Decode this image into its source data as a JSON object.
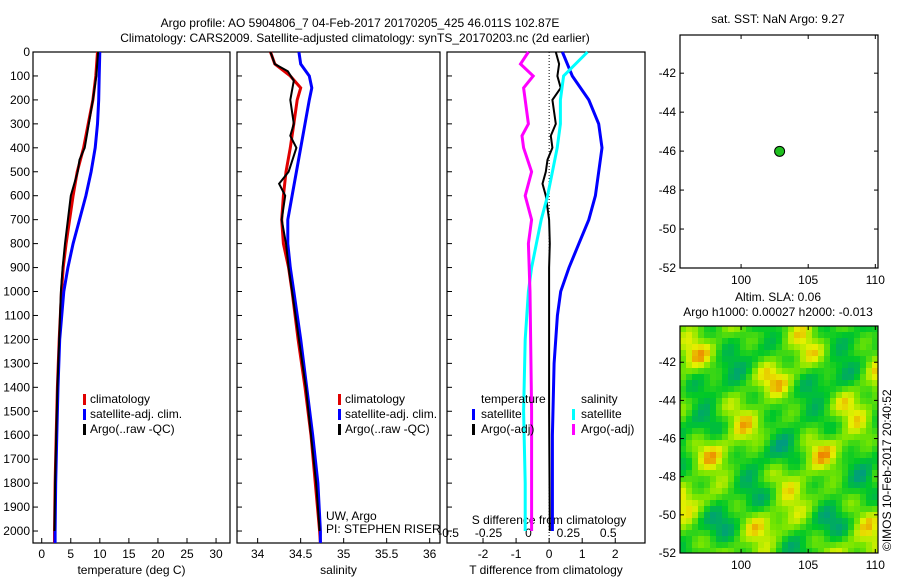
{
  "title_line1": "Argo profile: AO 5904806_7 04-Feb-2017 20170205_425 46.011S 102.87E",
  "title_line2": "Climatology: CARS2009. Satellite-adjusted climatology: synTS_20170203.nc (2d earlier)",
  "copyright": "©IMOS 10-Feb-2017 20:40:52",
  "colors": {
    "climatology": "#e00000",
    "satellite": "#0000ff",
    "argo": "#000000",
    "sal_sat": "#00ffff",
    "sal_argo": "#ff00ff",
    "float": "#1fbf1f"
  },
  "chart_data": [
    {
      "type": "line",
      "id": "temperature",
      "xlabel": "temperature (deg C)",
      "xlim": [
        -1.5,
        32.4
      ],
      "xticks": [
        "0",
        "5",
        "10",
        "15",
        "20",
        "25",
        "30"
      ],
      "xtick_values": [
        0,
        5,
        10,
        15,
        20,
        25,
        30
      ],
      "ylabel": "depth",
      "ylim": [
        0,
        2050
      ],
      "yticks": [
        "0",
        "100",
        "200",
        "300",
        "400",
        "500",
        "600",
        "700",
        "800",
        "900",
        "1000",
        "1100",
        "1200",
        "1300",
        "1400",
        "1500",
        "1600",
        "1700",
        "1800",
        "1900",
        "2000"
      ],
      "legend": [
        "climatology",
        "satellite-adj. clim.",
        "Argo(..raw -QC)"
      ],
      "series": [
        {
          "name": "climatology",
          "color": "climatology",
          "depth": [
            0,
            100,
            200,
            300,
            400,
            500,
            600,
            700,
            800,
            900,
            1000,
            1200,
            1400,
            1600,
            1800,
            2000,
            2050
          ],
          "values": [
            9.6,
            9.3,
            8.8,
            8.0,
            7.2,
            6.1,
            5.4,
            4.8,
            4.2,
            3.7,
            3.4,
            3.0,
            2.7,
            2.5,
            2.3,
            2.2,
            2.2
          ]
        },
        {
          "name": "satellite-adj. clim.",
          "color": "satellite",
          "depth": [
            0,
            100,
            200,
            300,
            400,
            500,
            600,
            700,
            800,
            900,
            1000,
            1200,
            1400,
            1600,
            1800,
            2000,
            2050
          ],
          "values": [
            10.0,
            9.9,
            9.8,
            9.6,
            9.2,
            8.5,
            7.6,
            6.5,
            5.4,
            4.5,
            3.8,
            3.1,
            2.8,
            2.6,
            2.4,
            2.3,
            2.3
          ]
        },
        {
          "name": "Argo(..raw -QC)",
          "color": "argo",
          "depth": [
            0,
            100,
            200,
            300,
            400,
            450,
            500,
            600,
            700,
            800,
            900,
            1000,
            1200,
            1400,
            1600,
            1800,
            2000
          ],
          "values": [
            9.7,
            9.4,
            8.8,
            8.1,
            7.4,
            6.5,
            6.2,
            5.0,
            4.5,
            4.0,
            3.6,
            3.3,
            3.0,
            2.7,
            2.5,
            2.3,
            2.2
          ]
        }
      ]
    },
    {
      "type": "line",
      "id": "salinity",
      "xlabel": "salinity",
      "xlim": [
        33.76,
        36.12
      ],
      "xticks": [
        "34",
        "34.5",
        "35",
        "35.5",
        "36"
      ],
      "xtick_values": [
        34,
        34.5,
        35,
        35.5,
        36
      ],
      "ylim": [
        0,
        2050
      ],
      "legend": [
        "climatology",
        "satellite-adj. clim.",
        "Argo(..raw -QC)"
      ],
      "annotations": [
        "UW, Argo",
        "PI: STEPHEN RISER"
      ],
      "series": [
        {
          "name": "climatology",
          "color": "climatology",
          "depth": [
            0,
            50,
            100,
            150,
            200,
            300,
            400,
            500,
            600,
            700,
            800,
            900,
            1000,
            1200,
            1400,
            1600,
            1800,
            2000,
            2050
          ],
          "values": [
            34.15,
            34.2,
            34.38,
            34.5,
            34.46,
            34.42,
            34.38,
            34.33,
            34.3,
            34.28,
            34.3,
            34.36,
            34.4,
            34.47,
            34.55,
            34.62,
            34.67,
            34.72,
            34.73
          ]
        },
        {
          "name": "satellite-adj. clim.",
          "color": "satellite",
          "depth": [
            0,
            50,
            100,
            150,
            200,
            300,
            400,
            500,
            600,
            700,
            800,
            900,
            1000,
            1200,
            1400,
            1600,
            1800,
            2000,
            2050
          ],
          "values": [
            34.48,
            34.5,
            34.6,
            34.63,
            34.6,
            34.55,
            34.5,
            34.45,
            34.4,
            34.35,
            34.35,
            34.38,
            34.42,
            34.5,
            34.57,
            34.64,
            34.7,
            34.73,
            34.73
          ]
        },
        {
          "name": "Argo(..raw -QC)",
          "color": "argo",
          "depth": [
            0,
            50,
            80,
            120,
            200,
            300,
            350,
            400,
            500,
            550,
            600,
            700,
            800,
            900,
            1000,
            1200,
            1400,
            1600,
            1800,
            2000
          ],
          "values": [
            34.15,
            34.2,
            34.35,
            34.42,
            34.38,
            34.42,
            34.38,
            34.45,
            34.36,
            34.25,
            34.32,
            34.28,
            34.33,
            34.36,
            34.4,
            34.48,
            34.56,
            34.62,
            34.68,
            34.72
          ]
        }
      ]
    },
    {
      "type": "line",
      "id": "differences",
      "xlabel": "T difference from climatology",
      "xlim": [
        -3.09,
        2.9
      ],
      "xticks": [
        "-2",
        "-1",
        "0",
        "1",
        "2"
      ],
      "xtick_values": [
        -2,
        -1,
        0,
        1,
        2
      ],
      "x2label": "S difference from climatology",
      "x2lim": [
        -0.51,
        0.73
      ],
      "x2ticks": [
        "-0.5",
        "-0.25",
        "0",
        "0.25",
        "0.5"
      ],
      "x2tick_values": [
        -0.5,
        -0.25,
        0,
        0.25,
        0.5
      ],
      "ylim": [
        0,
        2050
      ],
      "legend_groups": [
        {
          "title": "temperature",
          "items": [
            "satellite",
            "Argo(-adj)"
          ]
        },
        {
          "title": "salinity",
          "items": [
            "satellite",
            "Argo(-adj)"
          ]
        }
      ],
      "series": [
        {
          "name": "temperature satellite",
          "axis": "T",
          "color": "satellite",
          "depth": [
            0,
            100,
            200,
            300,
            400,
            500,
            600,
            700,
            800,
            900,
            1000,
            1100,
            1300,
            1600,
            2000
          ],
          "values": [
            0.4,
            0.7,
            1.2,
            1.5,
            1.6,
            1.5,
            1.4,
            1.2,
            0.9,
            0.6,
            0.35,
            0.25,
            0.15,
            0.1,
            0.1
          ]
        },
        {
          "name": "temperature Argo(-adj)",
          "axis": "T",
          "color": "argo",
          "depth": [
            0,
            50,
            100,
            150,
            200,
            250,
            300,
            350,
            400,
            450,
            500,
            550,
            600,
            700,
            800,
            900,
            1000,
            1500,
            2000
          ],
          "values": [
            0.2,
            0.3,
            0.25,
            0.35,
            0.1,
            0.15,
            0.2,
            0.05,
            0.1,
            -0.05,
            -0.1,
            -0.2,
            -0.1,
            0,
            0.02,
            0,
            0,
            0,
            0.02
          ]
        },
        {
          "name": "salinity satellite",
          "axis": "S",
          "color": "sal_sat",
          "depth": [
            0,
            100,
            200,
            300,
            400,
            500,
            600,
            700,
            800,
            900,
            1000,
            1200,
            1500,
            1800,
            2000
          ],
          "values": [
            0.37,
            0.22,
            0.2,
            0.2,
            0.18,
            0.15,
            0.12,
            0.08,
            0.05,
            0.02,
            0,
            -0.02,
            -0.03,
            -0.02,
            -0.02
          ]
        },
        {
          "name": "salinity Argo(-adj)",
          "axis": "S",
          "color": "sal_argo",
          "depth": [
            0,
            50,
            100,
            150,
            200,
            300,
            350,
            400,
            500,
            600,
            700,
            800,
            1000,
            1500,
            2000
          ],
          "values": [
            0,
            -0.05,
            0.03,
            -0.03,
            -0.02,
            0,
            -0.04,
            -0.03,
            0.02,
            -0.02,
            0.02,
            0,
            0.01,
            0.02,
            0.02
          ]
        }
      ]
    },
    {
      "type": "scatter",
      "id": "sst_map",
      "title": "sat. SST: NaN Argo: 9.27",
      "xlim": [
        95.45,
        110.2
      ],
      "ylim": [
        -52,
        -40.04
      ],
      "xticks": [
        "100",
        "105",
        "110"
      ],
      "xtick_values": [
        100,
        105,
        110
      ],
      "yticks": [
        "-42",
        "-44",
        "-46",
        "-48",
        "-50",
        "-52"
      ],
      "ytick_values": [
        -42,
        -44,
        -46,
        -48,
        -50,
        -52
      ],
      "points": [
        {
          "lon": 102.87,
          "lat": -46.011
        }
      ]
    },
    {
      "type": "heatmap",
      "id": "sla_map",
      "title_line1": "Altim. SLA: 0.06",
      "title_line2": "Argo h1000: 0.00027 h2000: -0.013",
      "xlim": [
        95.45,
        110.2
      ],
      "ylim": [
        -52,
        -40.1
      ],
      "xticks": [
        "100",
        "105",
        "110"
      ],
      "xtick_values": [
        100,
        105,
        110
      ],
      "yticks": [
        "-42",
        "-44",
        "-46",
        "-48",
        "-50",
        "-52"
      ],
      "ytick_values": [
        -42,
        -44,
        -46,
        -48,
        -50,
        -52
      ]
    }
  ]
}
